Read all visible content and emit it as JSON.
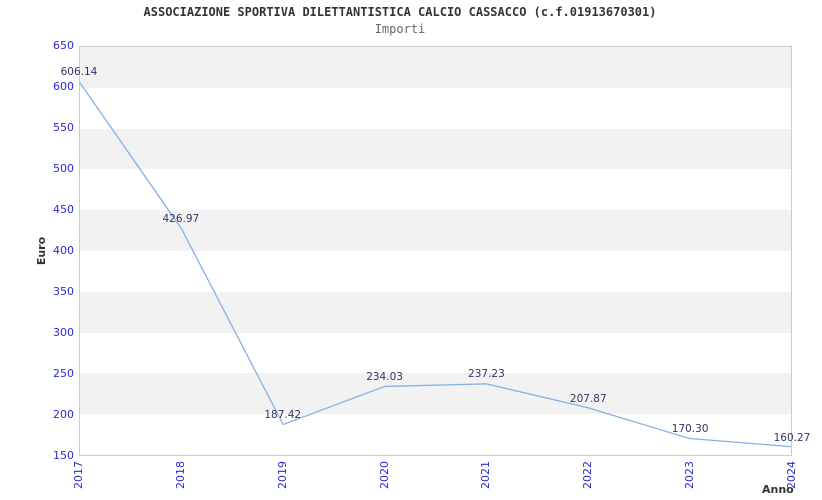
{
  "title": "ASSOCIAZIONE SPORTIVA DILETTANTISTICA CALCIO CASSACCO (c.f.01913670301)",
  "subtitle": "Importi",
  "colors": {
    "background": "#ffffff",
    "title_text": "#333333",
    "subtitle_text": "#666666",
    "tick_label": "#2a2ad2",
    "data_label": "#333366",
    "line": "#84b1e2",
    "band_fill": "#f2f2f2",
    "plot_border": "#cccccc",
    "axis_title_text": "#333333"
  },
  "chart_data": {
    "type": "line",
    "title": "Importi",
    "categories": [
      "2017",
      "2018",
      "2019",
      "2020",
      "2021",
      "2022",
      "2023",
      "2024"
    ],
    "values": [
      606.14,
      426.97,
      187.42,
      234.03,
      237.23,
      207.87,
      170.3,
      160.27
    ],
    "point_labels": [
      "606.14",
      "426.97",
      "187.42",
      "234.03",
      "237.23",
      "207.87",
      "170.30",
      "160.27"
    ],
    "xlabel": "Anno",
    "ylabel": "Euro",
    "ylim": [
      150,
      650
    ],
    "ytick_step": 50,
    "legend": "none",
    "grid": "alternating horizontal bands"
  }
}
